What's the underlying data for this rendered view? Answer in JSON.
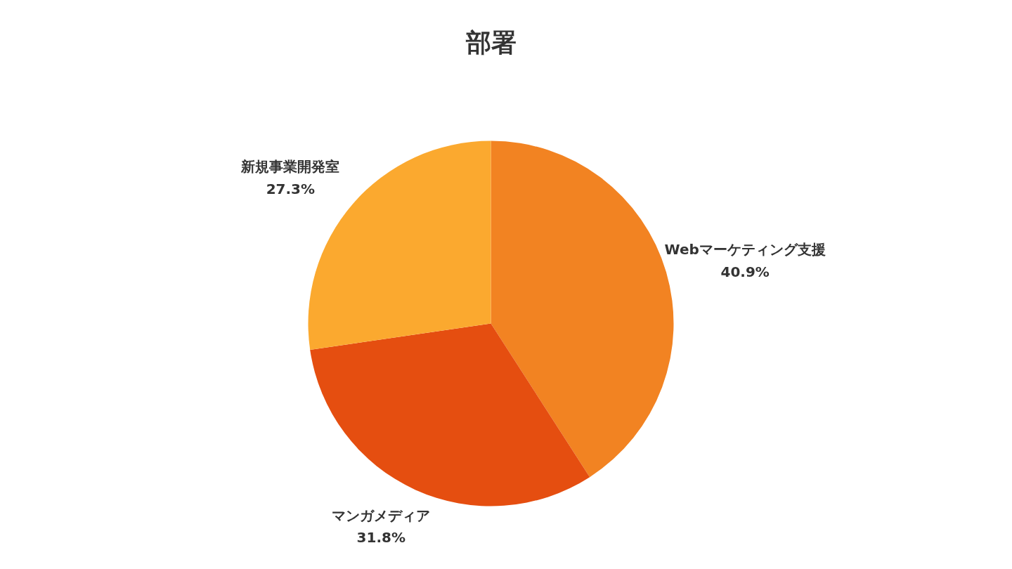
{
  "chart_data": {
    "type": "pie",
    "title": "部署",
    "categories": [
      "Webマーケティング支援",
      "マンガメディア",
      "新規事業開発室"
    ],
    "values": [
      40.9,
      31.8,
      27.3
    ],
    "colors": [
      "#f28322",
      "#e54e10",
      "#fba92f"
    ],
    "value_labels": [
      "40.9%",
      "31.8%",
      "27.3%"
    ]
  }
}
